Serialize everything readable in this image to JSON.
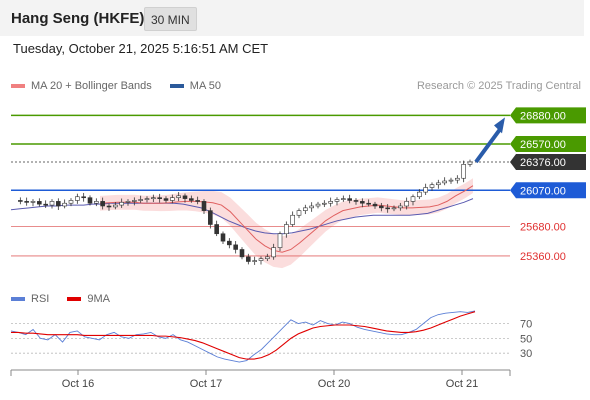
{
  "header": {
    "title": "Hang Seng (HKFE)",
    "interval": "30 MIN",
    "datetime": "Tuesday, October 21, 2025 5:16:51 AM CET"
  },
  "legend": {
    "items": [
      {
        "label": "MA 20 + Bollinger Bands",
        "color": "#f08080"
      },
      {
        "label": "MA 50",
        "color": "#2b5a9b"
      }
    ],
    "credit": "Research © 2025 Trading Central"
  },
  "rsi_legend": {
    "items": [
      {
        "label": "RSI",
        "color": "#5b7fd6"
      },
      {
        "label": "9MA",
        "color": "#e00000"
      }
    ]
  },
  "chart_data": [
    {
      "type": "candlestick",
      "title": "",
      "y_range": [
        25100,
        27100
      ],
      "levels": [
        {
          "value": "26880.00",
          "kind": "resistance",
          "color": "#4a9a00"
        },
        {
          "value": "26570.00",
          "kind": "resistance",
          "color": "#4a9a00"
        },
        {
          "value": "26376.00",
          "kind": "current",
          "color": "#333333"
        },
        {
          "value": "26070.00",
          "kind": "pivot",
          "color": "#1e5bd6"
        },
        {
          "value": "25680.00",
          "kind": "support",
          "color": "#e06666"
        },
        {
          "value": "25360.00",
          "kind": "support",
          "color": "#e06666"
        }
      ],
      "price_path": [
        25960,
        25950,
        25940,
        25950,
        25920,
        25910,
        25950,
        25900,
        25930,
        25960,
        26000,
        25990,
        25930,
        25950,
        25900,
        25890,
        25910,
        25940,
        25950,
        25960,
        25970,
        25980,
        25990,
        25980,
        25960,
        25990,
        26010,
        25980,
        25960,
        25950,
        25850,
        25700,
        25600,
        25520,
        25480,
        25430,
        25350,
        25300,
        25310,
        25330,
        25350,
        25450,
        25600,
        25700,
        25800,
        25850,
        25880,
        25900,
        25920,
        25930,
        25950,
        25970,
        25980,
        25960,
        25950,
        25930,
        25920,
        25900,
        25880,
        25870,
        25880,
        25900,
        25950,
        26000,
        26050,
        26100,
        26130,
        26150,
        26170,
        26180,
        26200,
        26350,
        26376
      ],
      "ma50_path": [
        25860,
        25870,
        25880,
        25890,
        25900,
        25900,
        25910,
        25910,
        25910,
        25920,
        25920,
        25930,
        25930,
        25930,
        25930,
        25930,
        25930,
        25930,
        25930,
        25920,
        25900,
        25880,
        25840,
        25790,
        25740,
        25700,
        25660,
        25630,
        25610,
        25600,
        25600,
        25610,
        25630,
        25650,
        25680,
        25710,
        25740,
        25760,
        25780,
        25790,
        25800,
        25800,
        25800,
        25800,
        25800,
        25810,
        25820,
        25850,
        25880,
        25910,
        25940,
        25980
      ],
      "ma20_path": [
        25930,
        25935,
        25940,
        25940,
        25940,
        25930,
        25930,
        25930,
        25935,
        25945,
        25950,
        25950,
        25945,
        25935,
        25910,
        25840,
        25740,
        25640,
        25540,
        25470,
        25420,
        25400,
        25430,
        25500,
        25580,
        25660,
        25740,
        25800,
        25850,
        25870,
        25890,
        25900,
        25910,
        25900,
        25890,
        25880,
        25880,
        25885,
        25890,
        25910,
        25950,
        26010,
        26060,
        26120
      ],
      "x_labels": [
        "Oct 16",
        "Oct 17",
        "Oct 20",
        "Oct 21"
      ]
    },
    {
      "type": "line",
      "title": "",
      "y_range": [
        0,
        100
      ],
      "y_ticks": [
        "70",
        "50",
        "30"
      ],
      "series": [
        {
          "name": "RSI",
          "values": [
            60,
            58,
            55,
            62,
            50,
            48,
            55,
            45,
            58,
            60,
            52,
            50,
            48,
            55,
            58,
            52,
            50,
            55,
            56,
            58,
            52,
            50,
            55,
            48,
            45,
            40,
            35,
            30,
            25,
            22,
            20,
            18,
            20,
            28,
            35,
            45,
            55,
            65,
            75,
            70,
            72,
            68,
            74,
            70,
            68,
            72,
            70,
            65,
            62,
            60,
            58,
            56,
            55,
            55,
            58,
            62,
            70,
            78,
            82,
            84,
            85,
            86,
            85,
            87
          ]
        },
        {
          "name": "9MA",
          "values": [
            58,
            58,
            57,
            57,
            56,
            55,
            55,
            55,
            55,
            55,
            54,
            54,
            54,
            54,
            54,
            54,
            54,
            54,
            54,
            54,
            53,
            53,
            52,
            51,
            49,
            47,
            44,
            40,
            36,
            32,
            28,
            24,
            22,
            22,
            24,
            28,
            34,
            42,
            50,
            56,
            60,
            64,
            66,
            67,
            68,
            68,
            68,
            67,
            66,
            64,
            62,
            60,
            59,
            58,
            58,
            59,
            61,
            64,
            68,
            72,
            76,
            80,
            83,
            86
          ]
        }
      ]
    }
  ]
}
